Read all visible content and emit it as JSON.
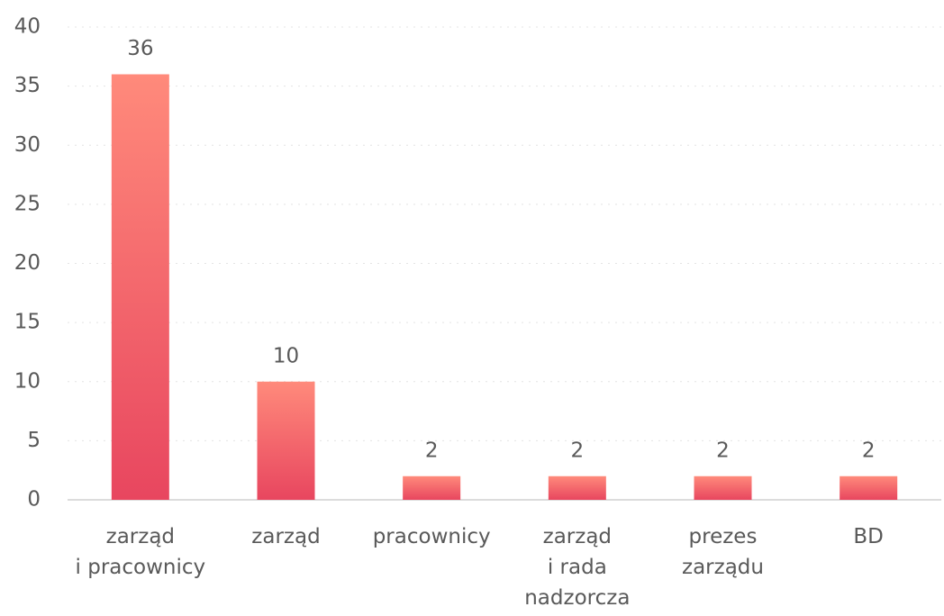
{
  "chart_data": {
    "type": "bar",
    "categories": [
      "zarząd\ni pracownicy",
      "zarząd",
      "pracownicy",
      "zarząd\ni rada\nnadzorcza",
      "prezes\nzarządu",
      "BD"
    ],
    "values": [
      36,
      10,
      2,
      2,
      2,
      2
    ],
    "color": "#e94a63",
    "ylim": [
      0,
      40
    ],
    "yticks": [
      0,
      5,
      10,
      15,
      20,
      25,
      30,
      35,
      40
    ],
    "grid": true
  }
}
